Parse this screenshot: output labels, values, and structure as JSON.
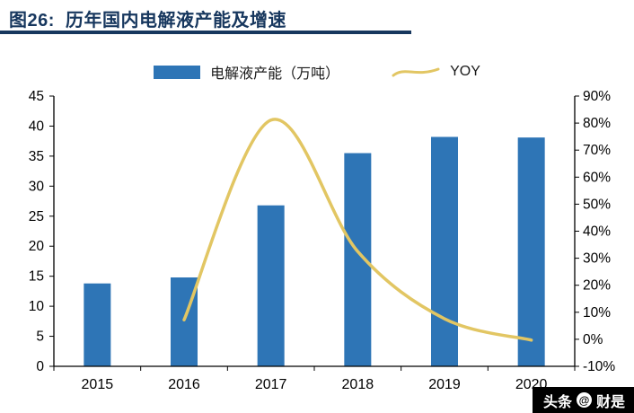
{
  "header": {
    "title": "图26:  历年国内电解液产能及增速"
  },
  "legend": {
    "bar_label": "电解液产能（万吨）",
    "line_label": "YOY"
  },
  "watermark": {
    "site": "头条",
    "logo_glyph": "@",
    "account": "财是"
  },
  "colors": {
    "bar": "#2E75B6",
    "line": "#E2C663",
    "title": "#17375E",
    "axis": "#000000",
    "watermark_bg": "#000000"
  },
  "chart_data": {
    "type": "bar+line",
    "title": "图26: 历年国内电解液产能及增速",
    "categories": [
      "2015",
      "2016",
      "2017",
      "2018",
      "2019",
      "2020"
    ],
    "series": [
      {
        "name": "电解液产能（万吨）",
        "type": "bar",
        "y_axis": "left",
        "values": [
          13.8,
          14.8,
          26.8,
          35.5,
          38.2,
          38.1
        ]
      },
      {
        "name": "YOY",
        "type": "line",
        "y_axis": "right",
        "unit": "%",
        "values": [
          null,
          7.2,
          81.1,
          32.5,
          7.6,
          -0.3
        ]
      }
    ],
    "left_axis": {
      "min": 0,
      "max": 45,
      "step": 5,
      "suffix": ""
    },
    "right_axis": {
      "min": -10,
      "max": 90,
      "step": 10,
      "suffix": "%"
    },
    "grid": false,
    "legend_position": "top"
  }
}
